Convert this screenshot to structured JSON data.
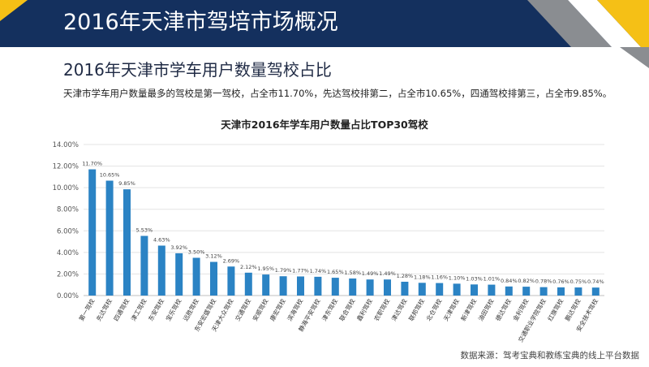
{
  "header": {
    "title": "2016年天津市驾培市场概况",
    "colors": {
      "navy": "#14305e",
      "accent_yellow": "#f5c016",
      "gray": "#8a8d91"
    }
  },
  "section": {
    "subtitle": "2016年天津市学车用户数量驾校占比",
    "description": "天津市学车用户数量最多的驾校是第一驾校，占全市11.70%，先达驾校排第二，占全市10.65%，四通驾校排第三，占全市9.85%。"
  },
  "chart_data": {
    "type": "bar",
    "title": "天津市2016年学车用户数量占比TOP30驾校",
    "xlabel": "",
    "ylabel": "",
    "ylim": [
      0,
      14
    ],
    "yticks": [
      "0.00%",
      "2.00%",
      "4.00%",
      "6.00%",
      "8.00%",
      "10.00%",
      "12.00%",
      "14.00%"
    ],
    "bar_color": "#2b83c4",
    "grid": true,
    "categories": [
      "第一驾校",
      "先达驾校",
      "四通驾校",
      "津工驾校",
      "东安驾校",
      "宝乐驾校",
      "远胜驾校",
      "东安宏盛驾校",
      "天津大众驾校",
      "交通驾校",
      "安顺驾校",
      "康宏驾校",
      "滨海驾校",
      "静海平安驾校",
      "津东驾校",
      "联合驾校",
      "鑫利驾校",
      "农职驾校",
      "津达驾校",
      "联邦驾校",
      "北仓驾校",
      "天津驾校",
      "新津驾校",
      "油田驾校",
      "德达驾校",
      "金利驾校",
      "交通职业学院驾校",
      "红旗驾校",
      "鹏达驾校",
      "安全技术驾校"
    ],
    "values": [
      11.7,
      10.65,
      9.85,
      5.53,
      4.63,
      3.92,
      3.5,
      3.12,
      2.69,
      2.12,
      1.95,
      1.79,
      1.77,
      1.74,
      1.65,
      1.58,
      1.49,
      1.49,
      1.28,
      1.18,
      1.16,
      1.1,
      1.03,
      1.01,
      0.84,
      0.82,
      0.78,
      0.76,
      0.75,
      0.74
    ],
    "value_labels": [
      "11.70%",
      "10.65%",
      "9.85%",
      "5.53%",
      "4.63%",
      "3.92%",
      "3.50%",
      "3.12%",
      "2.69%",
      "2.12%",
      "1.95%",
      "1.79%",
      "1.77%",
      "1.74%",
      "1.65%",
      "1.58%",
      "1.49%",
      "1.49%",
      "1.28%",
      "1.18%",
      "1.16%",
      "1.10%",
      "1.03%",
      "1.01%",
      "0.84%",
      "0.82%",
      "0.78%",
      "0.76%",
      "0.75%",
      "0.74%"
    ]
  },
  "footer": {
    "source": "数据来源：驾考宝典和教练宝典的线上平台数据"
  }
}
